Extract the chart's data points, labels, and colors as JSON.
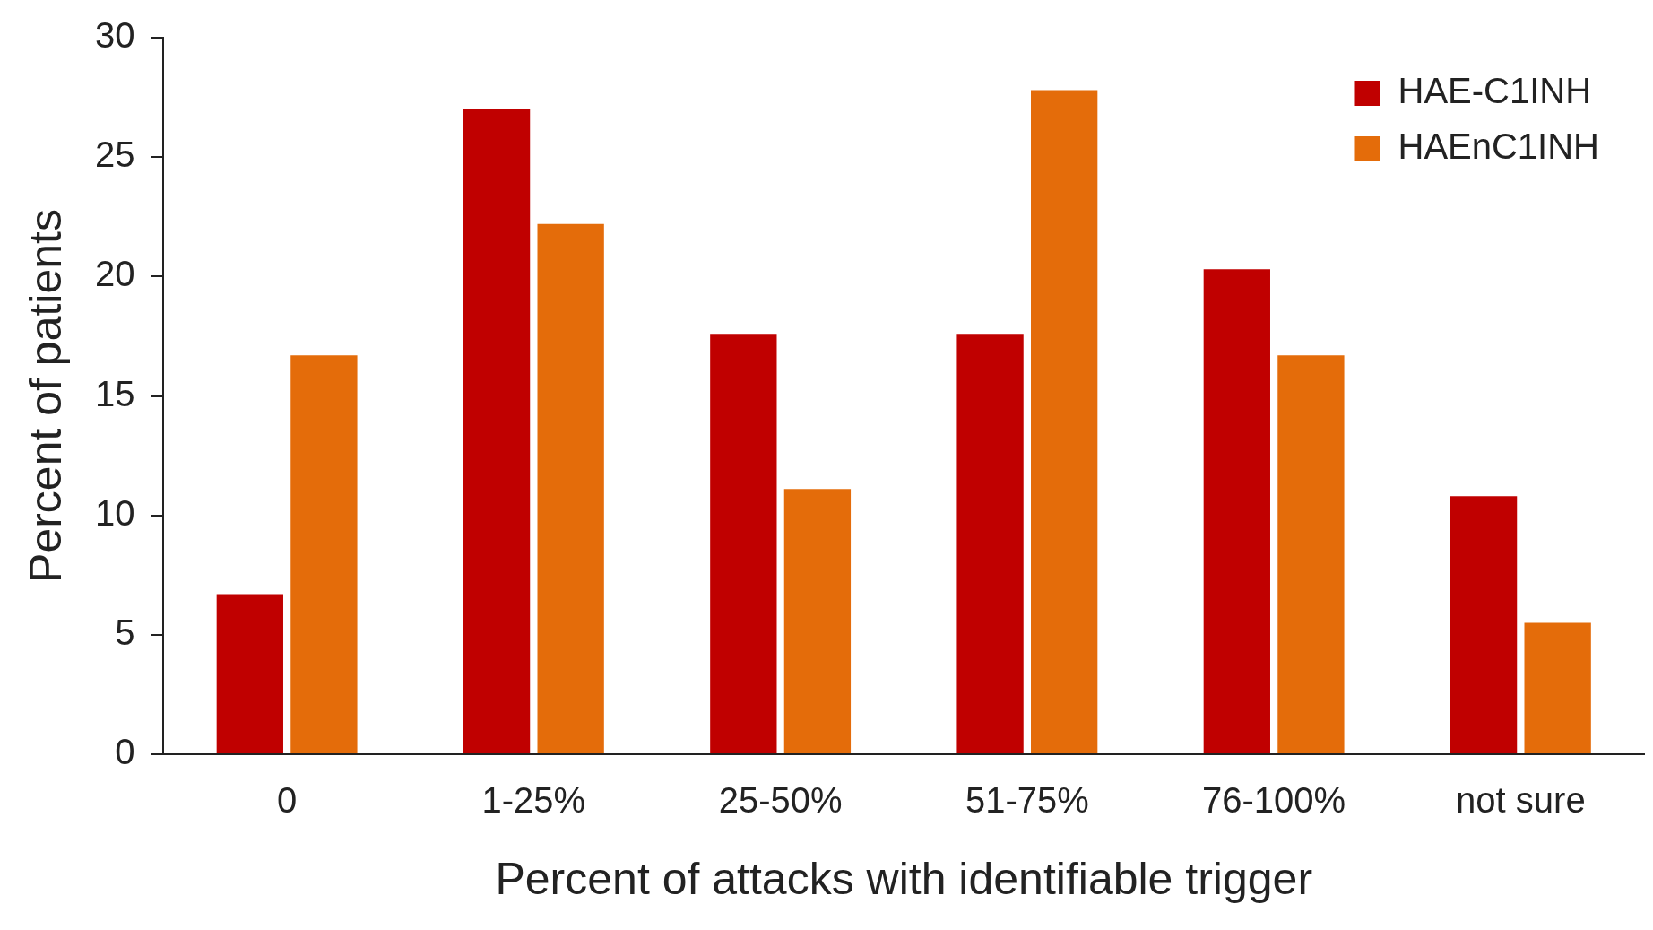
{
  "chart_data": {
    "type": "bar",
    "xlabel": "Percent of attacks with identifiable trigger",
    "ylabel": "Percent of patients",
    "categories": [
      "0",
      "1-25%",
      "25-50%",
      "51-75%",
      "76-100%",
      "not sure"
    ],
    "series": [
      {
        "name": "HAE-C1INH",
        "color": "#c00000",
        "values": [
          6.7,
          27.0,
          17.6,
          17.6,
          20.3,
          10.8
        ]
      },
      {
        "name": "HAEnC1INH",
        "color": "#e46c0a",
        "values": [
          16.7,
          22.2,
          11.1,
          27.8,
          16.7,
          5.5
        ]
      }
    ],
    "ylim": [
      0,
      30
    ],
    "yticks": [
      0,
      5,
      10,
      15,
      20,
      25,
      30
    ],
    "grid": false,
    "legend": "top right"
  }
}
